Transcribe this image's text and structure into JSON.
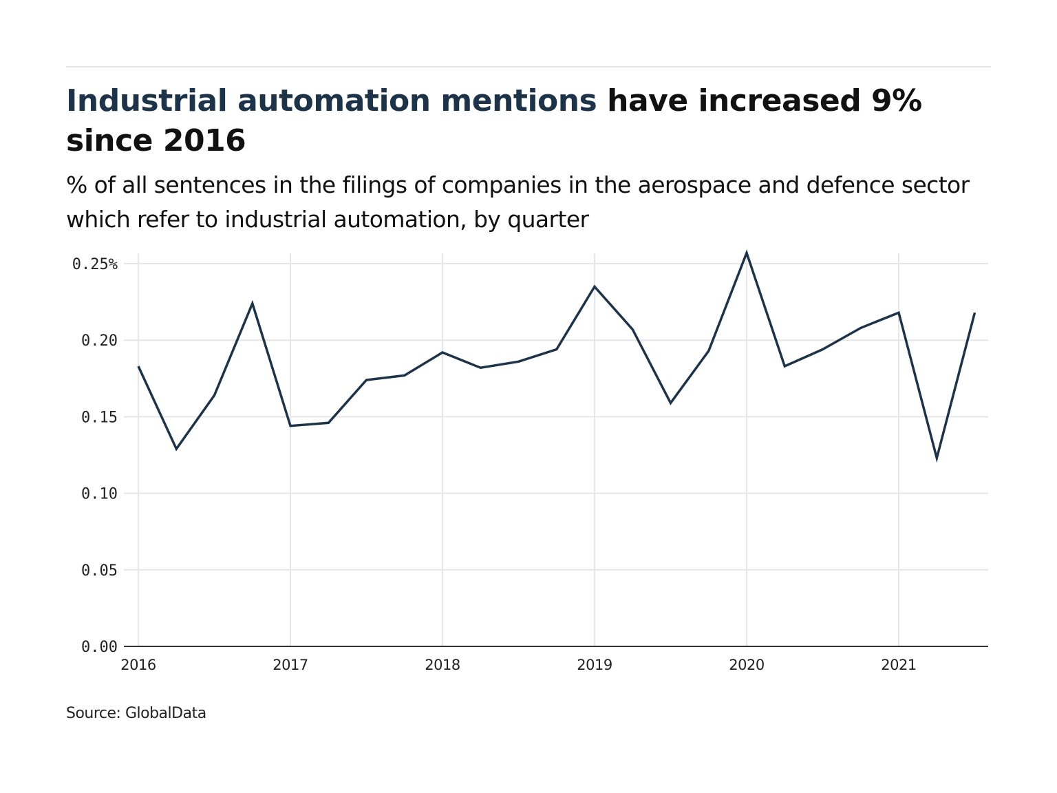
{
  "header": {
    "title_highlight": "Industrial automation mentions",
    "title_rest": " have increased 9% since 2016",
    "subtitle": "% of all sentences in the filings of companies in the aerospace and defence sector which refer to industrial automation, by quarter"
  },
  "footer": {
    "source": "Source: GlobalData"
  },
  "colors": {
    "line": "#1d3349",
    "title_highlight": "#1d3349",
    "grid": "#e6e6e6",
    "axis": "#333333"
  },
  "chart_data": {
    "type": "line",
    "title": "Industrial automation mentions have increased 9% since 2016",
    "subtitle": "% of all sentences in the filings of companies in the aerospace and defence sector which refer to industrial automation, by quarter",
    "xlabel": "",
    "ylabel": "",
    "x": [
      "2016 Q1",
      "2016 Q2",
      "2016 Q3",
      "2016 Q4",
      "2017 Q1",
      "2017 Q2",
      "2017 Q3",
      "2017 Q4",
      "2018 Q1",
      "2018 Q2",
      "2018 Q3",
      "2018 Q4",
      "2019 Q1",
      "2019 Q2",
      "2019 Q3",
      "2019 Q4",
      "2020 Q1",
      "2020 Q2",
      "2020 Q3",
      "2020 Q4",
      "2021 Q1",
      "2021 Q2",
      "2021 Q3"
    ],
    "series": [
      {
        "name": "Industrial automation mentions (%)",
        "values": [
          0.183,
          0.129,
          0.164,
          0.224,
          0.144,
          0.146,
          0.174,
          0.177,
          0.192,
          0.182,
          0.186,
          0.194,
          0.235,
          0.207,
          0.159,
          0.193,
          0.257,
          0.183,
          0.194,
          0.208,
          0.218,
          0.123,
          0.218
        ]
      }
    ],
    "xticks": [
      "2016",
      "2017",
      "2018",
      "2019",
      "2020",
      "2021"
    ],
    "yticks": [
      "0.00",
      "0.05",
      "0.10",
      "0.15",
      "0.20",
      "0.25%"
    ],
    "ytick_values": [
      0,
      0.05,
      0.1,
      0.15,
      0.2,
      0.25
    ],
    "ylim": [
      0,
      0.25
    ],
    "grid": true,
    "legend": "none",
    "source": "Source: GlobalData"
  }
}
